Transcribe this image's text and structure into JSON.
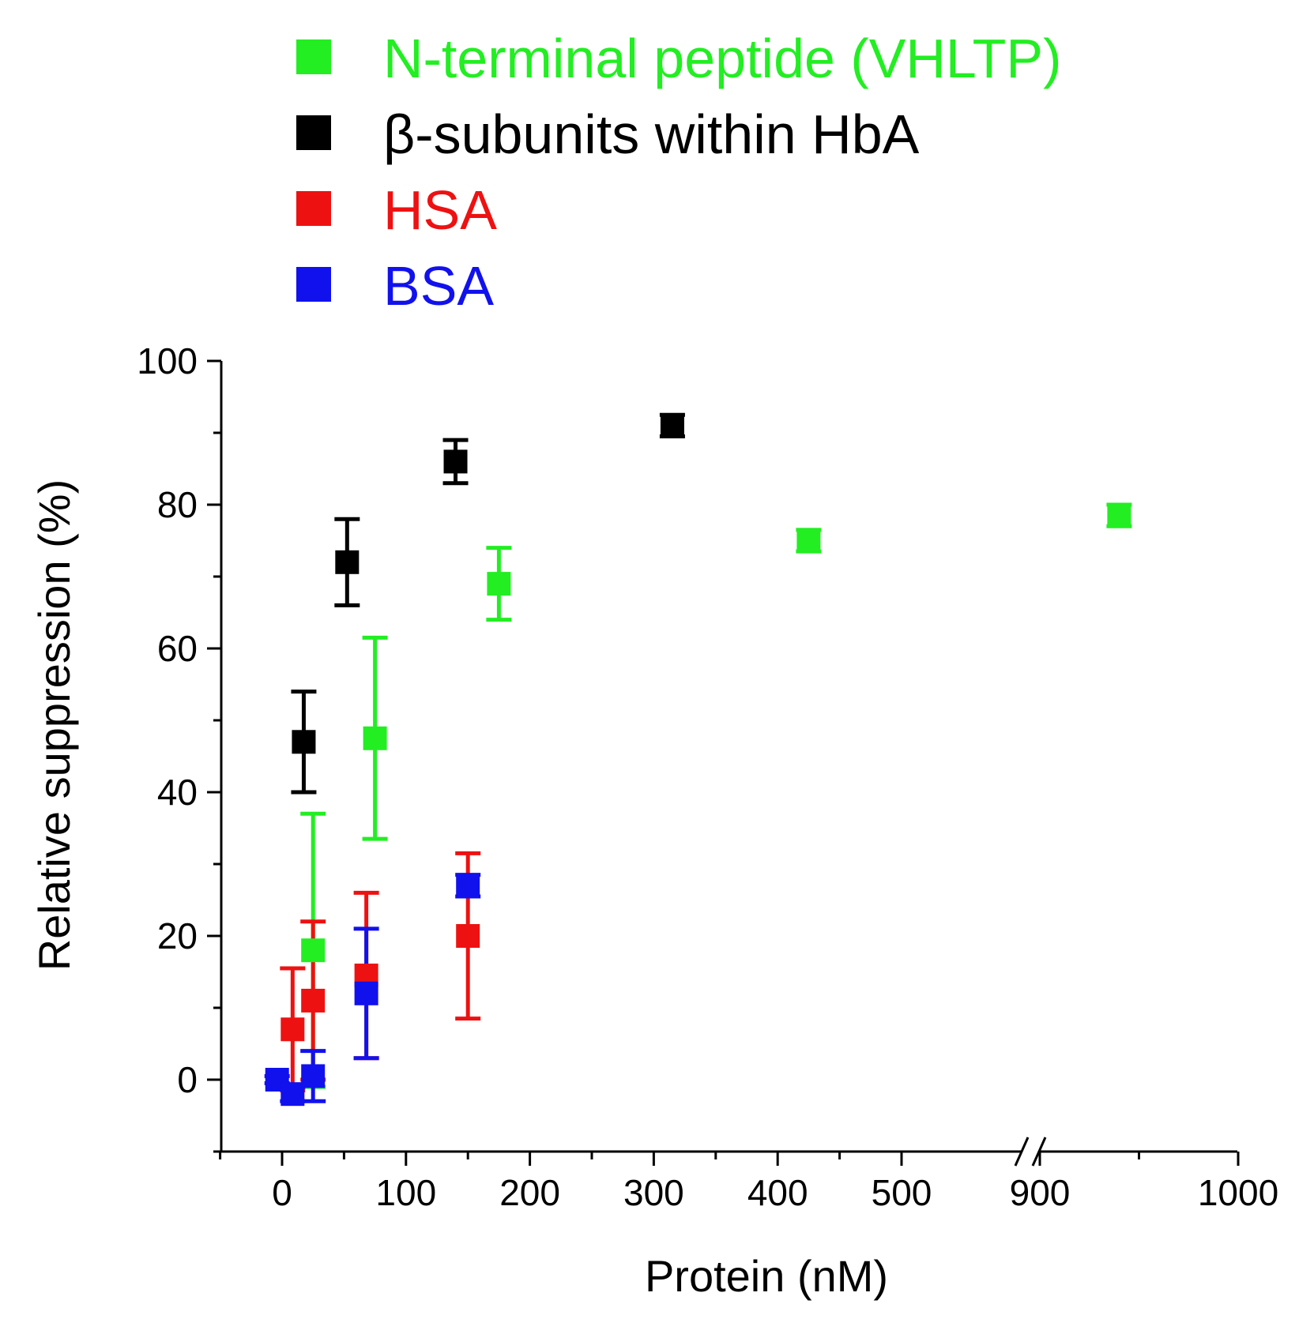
{
  "chart_data": {
    "type": "scatter",
    "title": "",
    "xlabel": "Protein (nM)",
    "ylabel": "Relative suppression (%)",
    "ylim": [
      -10,
      100
    ],
    "xlim": [
      -50,
      1000
    ],
    "x_axis_break": [
      500,
      900
    ],
    "x_ticks": [
      0,
      100,
      200,
      300,
      400,
      500,
      900,
      1000
    ],
    "y_ticks": [
      0,
      20,
      40,
      60,
      80,
      100
    ],
    "grid": false,
    "legend_position": "top-left, above plot",
    "series": [
      {
        "name": "N-terminal peptide (VHLTP)",
        "color": "#22ee22",
        "points": [
          {
            "x": 25,
            "y": 18,
            "err": 19
          },
          {
            "x": 75,
            "y": 47.5,
            "err": 14
          },
          {
            "x": 175,
            "y": 69,
            "err": 5
          },
          {
            "x": 425,
            "y": 75,
            "err": 1.5
          },
          {
            "x": 940,
            "y": 78.5,
            "err": 1.5
          }
        ]
      },
      {
        "name": "β-subunits within HbA",
        "color": "#000000",
        "points": [
          {
            "x": 17.5,
            "y": 47,
            "err": 7
          },
          {
            "x": 52.5,
            "y": 72,
            "err": 6
          },
          {
            "x": 140,
            "y": 86,
            "err": 3
          },
          {
            "x": 315,
            "y": 91,
            "err": 1.5
          }
        ]
      },
      {
        "name": "HSA",
        "color": "#ee1111",
        "points": [
          {
            "x": 8.5,
            "y": 7,
            "err": 8.5
          },
          {
            "x": 25,
            "y": 11,
            "err": 11
          },
          {
            "x": 68,
            "y": 14.5,
            "err": 11.5
          },
          {
            "x": 150,
            "y": 20,
            "err": 11.5
          }
        ]
      },
      {
        "name": "BSA",
        "color": "#1111ee",
        "points": [
          {
            "x": -4,
            "y": 0,
            "err": 0.5
          },
          {
            "x": 8.5,
            "y": -2,
            "err": 1
          },
          {
            "x": 25,
            "y": 0.5,
            "err": 3.5
          },
          {
            "x": 68,
            "y": 12,
            "err": 9
          },
          {
            "x": 150,
            "y": 27,
            "err": 1.5
          }
        ]
      }
    ]
  }
}
